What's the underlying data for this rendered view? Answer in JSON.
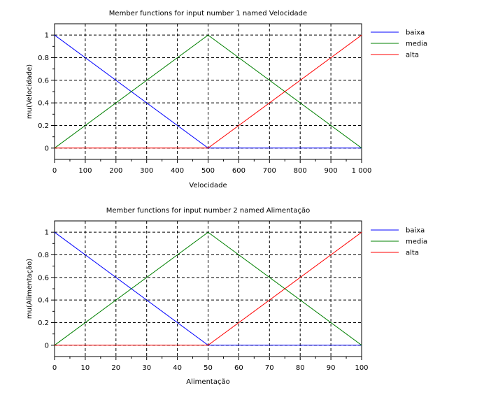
{
  "chart_data": [
    {
      "type": "line",
      "title": "Member functions for input number 1 named Velocidade",
      "xlabel": "Velocidade",
      "ylabel": "mu(Velocidade)",
      "xlim": [
        0,
        1000
      ],
      "ylim": [
        -0.1,
        1.1
      ],
      "xticks": [
        0,
        100,
        200,
        300,
        400,
        500,
        600,
        700,
        800,
        900,
        1000
      ],
      "xtick_labels": [
        "0",
        "100",
        "200",
        "300",
        "400",
        "500",
        "600",
        "700",
        "800",
        "900",
        "1 000"
      ],
      "yticks": [
        0,
        0.2,
        0.4,
        0.6,
        0.8,
        1
      ],
      "ytick_labels": [
        "0",
        "0.2",
        "0.4",
        "0.6",
        "0.8",
        "1"
      ],
      "grid": true,
      "legend_position": "right",
      "series": [
        {
          "name": "baixa",
          "color": "#0000ff",
          "x": [
            0,
            500,
            1000
          ],
          "y": [
            1,
            0,
            0
          ]
        },
        {
          "name": "media",
          "color": "#008000",
          "x": [
            0,
            500,
            1000
          ],
          "y": [
            0,
            1,
            0
          ]
        },
        {
          "name": "alta",
          "color": "#ff0000",
          "x": [
            0,
            500,
            1000
          ],
          "y": [
            0,
            0,
            1
          ]
        }
      ]
    },
    {
      "type": "line",
      "title": "Member functions for input number 2 named Alimentação",
      "xlabel": "Alimentação",
      "ylabel": "mu(Alimentação)",
      "xlim": [
        0,
        100
      ],
      "ylim": [
        -0.1,
        1.1
      ],
      "xticks": [
        0,
        10,
        20,
        30,
        40,
        50,
        60,
        70,
        80,
        90,
        100
      ],
      "xtick_labels": [
        "0",
        "10",
        "20",
        "30",
        "40",
        "50",
        "60",
        "70",
        "80",
        "90",
        "100"
      ],
      "yticks": [
        0,
        0.2,
        0.4,
        0.6,
        0.8,
        1
      ],
      "ytick_labels": [
        "0",
        "0.2",
        "0.4",
        "0.6",
        "0.8",
        "1"
      ],
      "grid": true,
      "legend_position": "right",
      "series": [
        {
          "name": "baixa",
          "color": "#0000ff",
          "x": [
            0,
            50,
            100
          ],
          "y": [
            1,
            0,
            0
          ]
        },
        {
          "name": "media",
          "color": "#008000",
          "x": [
            0,
            50,
            100
          ],
          "y": [
            0,
            1,
            0
          ]
        },
        {
          "name": "alta",
          "color": "#ff0000",
          "x": [
            0,
            50,
            100
          ],
          "y": [
            0,
            0,
            1
          ]
        }
      ]
    }
  ]
}
